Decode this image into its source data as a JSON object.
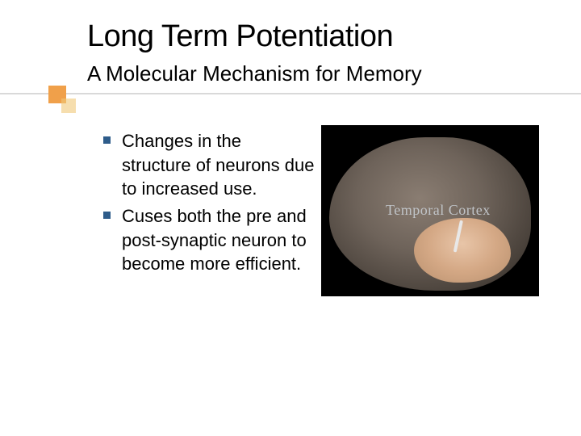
{
  "title": "Long Term Potentiation",
  "subtitle": "A Molecular Mechanism for Memory",
  "bullets": [
    "Changes in the structure of neurons due to increased use.",
    "Cuses both the pre and post-synaptic neuron to become more efficient."
  ],
  "figure": {
    "label": "Temporal Cortex",
    "background_color": "#000000",
    "brain_base_color": "#6e635a",
    "highlight_region_color": "#d4a885",
    "label_color": "#c0c4c8",
    "pointer_color": "#e8e8e8"
  },
  "accent": {
    "box_color_primary": "#f0a04a",
    "box_color_secondary": "rgba(240,200,120,0.6)",
    "line_color": "#d9d9d9",
    "bullet_color": "#2e5c8a"
  },
  "typography": {
    "title_fontsize": 38,
    "subtitle_fontsize": 26,
    "body_fontsize": 22,
    "font_family": "Verdana"
  }
}
